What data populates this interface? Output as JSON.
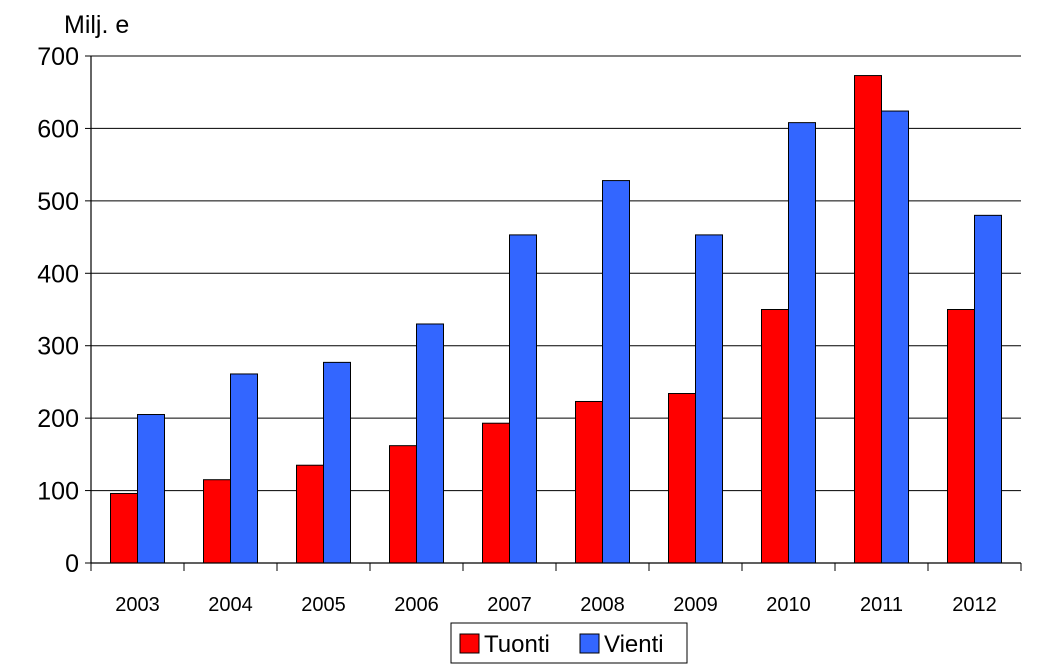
{
  "chart_data": {
    "type": "bar",
    "ylabel": "Milj. e",
    "xlabel": "",
    "ylim": [
      0,
      700
    ],
    "yticks": [
      "0",
      "100",
      "200",
      "300",
      "400",
      "500",
      "600",
      "700"
    ],
    "categories": [
      "2003",
      "2004",
      "2005",
      "2006",
      "2007",
      "2008",
      "2009",
      "2010",
      "2011",
      "2012"
    ],
    "series": [
      {
        "name": "Tuonti",
        "color": "#ff0000",
        "values": [
          96,
          115,
          135,
          162,
          193,
          223,
          234,
          350,
          673,
          350
        ]
      },
      {
        "name": "Vienti",
        "color": "#3366ff",
        "values": [
          205,
          261,
          277,
          330,
          453,
          528,
          453,
          608,
          624,
          480
        ]
      }
    ],
    "grid": true,
    "legend_position": "bottom-center"
  }
}
